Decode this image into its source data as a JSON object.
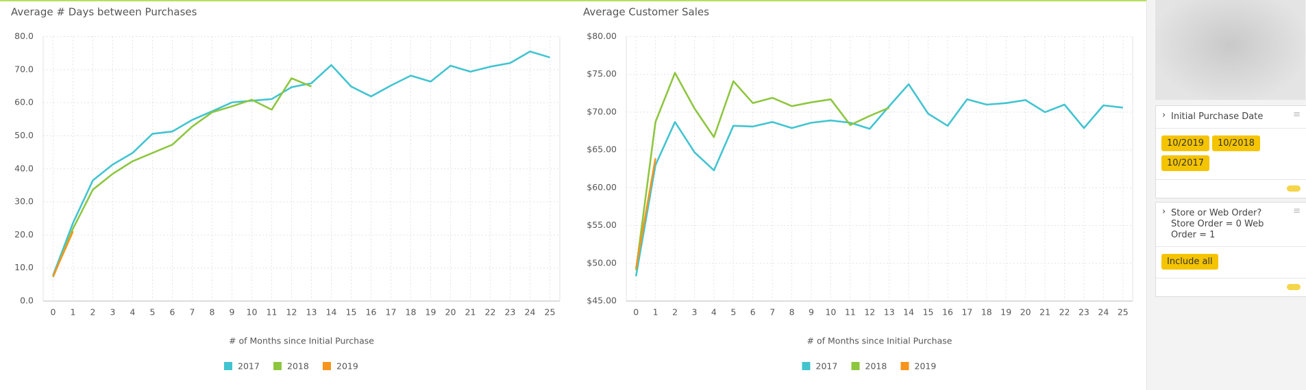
{
  "chart_data": [
    {
      "type": "line",
      "title": "Average # Days between Purchases",
      "x_label": "# of Months since Initial Purchase",
      "x": [
        0,
        1,
        2,
        3,
        4,
        5,
        6,
        7,
        8,
        9,
        10,
        11,
        12,
        13,
        14,
        15,
        16,
        17,
        18,
        19,
        20,
        21,
        22,
        23,
        24,
        25
      ],
      "xlim": [
        -0.5,
        25.5
      ],
      "xticks": [
        0,
        1,
        2,
        3,
        4,
        5,
        6,
        7,
        8,
        9,
        10,
        11,
        12,
        13,
        14,
        15,
        16,
        17,
        18,
        19,
        20,
        21,
        22,
        23,
        24,
        25
      ],
      "ylim": [
        0,
        80
      ],
      "yticks": [
        {
          "value": 0,
          "label": "0.0"
        },
        {
          "value": 10,
          "label": "10.0"
        },
        {
          "value": 20,
          "label": "20.0"
        },
        {
          "value": 30,
          "label": "30.0"
        },
        {
          "value": 40,
          "label": "40.0"
        },
        {
          "value": 50,
          "label": "50.0"
        },
        {
          "value": 60,
          "label": "60.0"
        },
        {
          "value": 70,
          "label": "70.0"
        },
        {
          "value": 80,
          "label": "80.0"
        }
      ],
      "grid": true,
      "legend": "bottom",
      "series": [
        {
          "name": "2017",
          "color": "#41c4d0",
          "values": [
            7.8,
            23.6,
            36.5,
            41.3,
            44.8,
            50.6,
            51.3,
            54.8,
            57.4,
            60.1,
            60.6,
            61.1,
            64.7,
            65.9,
            71.4,
            64.9,
            61.9,
            65.2,
            68.2,
            66.4,
            71.2,
            69.4,
            70.9,
            72.0,
            75.5,
            73.7
          ]
        },
        {
          "name": "2018",
          "color": "#8dc63f",
          "values": [
            7.3,
            21.9,
            33.7,
            38.5,
            42.3,
            44.8,
            47.3,
            52.8,
            57.1,
            58.9,
            60.9,
            57.9,
            67.4,
            64.9,
            null,
            null,
            null,
            null,
            null,
            null,
            null,
            null,
            null,
            null,
            null,
            null
          ]
        },
        {
          "name": "2019",
          "color": "#f7941d",
          "values": [
            7.5,
            21.1,
            null,
            null,
            null,
            null,
            null,
            null,
            null,
            null,
            null,
            null,
            null,
            null,
            null,
            null,
            null,
            null,
            null,
            null,
            null,
            null,
            null,
            null,
            null,
            null
          ]
        }
      ]
    },
    {
      "type": "line",
      "title": "Average Customer Sales",
      "x_label": "# of Months since Initial Purchase",
      "x": [
        0,
        1,
        2,
        3,
        4,
        5,
        6,
        7,
        8,
        9,
        10,
        11,
        12,
        13,
        14,
        15,
        16,
        17,
        18,
        19,
        20,
        21,
        22,
        23,
        24,
        25
      ],
      "xlim": [
        -0.5,
        25.5
      ],
      "xticks": [
        0,
        1,
        2,
        3,
        4,
        5,
        6,
        7,
        8,
        9,
        10,
        11,
        12,
        13,
        14,
        15,
        16,
        17,
        18,
        19,
        20,
        21,
        22,
        23,
        24,
        25
      ],
      "ylim": [
        45,
        80
      ],
      "yticks": [
        {
          "value": 45,
          "label": "$45.00"
        },
        {
          "value": 50,
          "label": "$50.00"
        },
        {
          "value": 55,
          "label": "$55.00"
        },
        {
          "value": 60,
          "label": "$60.00"
        },
        {
          "value": 65,
          "label": "$65.00"
        },
        {
          "value": 70,
          "label": "$70.00"
        },
        {
          "value": 75,
          "label": "$75.00"
        },
        {
          "value": 80,
          "label": "$80.00"
        }
      ],
      "grid": true,
      "legend": "bottom",
      "series": [
        {
          "name": "2017",
          "color": "#41c4d0",
          "values": [
            48.3,
            63.0,
            68.7,
            64.7,
            62.3,
            68.2,
            68.1,
            68.7,
            67.9,
            68.6,
            68.9,
            68.6,
            67.8,
            70.8,
            73.7,
            69.8,
            68.2,
            71.7,
            71.0,
            71.2,
            71.6,
            70.0,
            71.0,
            67.9,
            70.9,
            70.6
          ]
        },
        {
          "name": "2018",
          "color": "#8dc63f",
          "values": [
            49.1,
            68.7,
            75.2,
            70.5,
            66.7,
            74.1,
            71.2,
            71.9,
            70.8,
            71.3,
            71.7,
            68.3,
            69.5,
            70.6,
            null,
            null,
            null,
            null,
            null,
            null,
            null,
            null,
            null,
            null,
            null,
            null
          ]
        },
        {
          "name": "2019",
          "color": "#f7941d",
          "values": [
            49.3,
            63.9,
            null,
            null,
            null,
            null,
            null,
            null,
            null,
            null,
            null,
            null,
            null,
            null,
            null,
            null,
            null,
            null,
            null,
            null,
            null,
            null,
            null,
            null,
            null,
            null
          ]
        }
      ]
    }
  ],
  "sidebar": {
    "panels": [
      {
        "title": "Initial Purchase Date",
        "chips": [
          "10/2019",
          "10/2018",
          "10/2017"
        ]
      },
      {
        "title": "Store or Web Order? Store Order = 0 Web Order = 1",
        "chips": [
          "Include all"
        ]
      }
    ]
  }
}
